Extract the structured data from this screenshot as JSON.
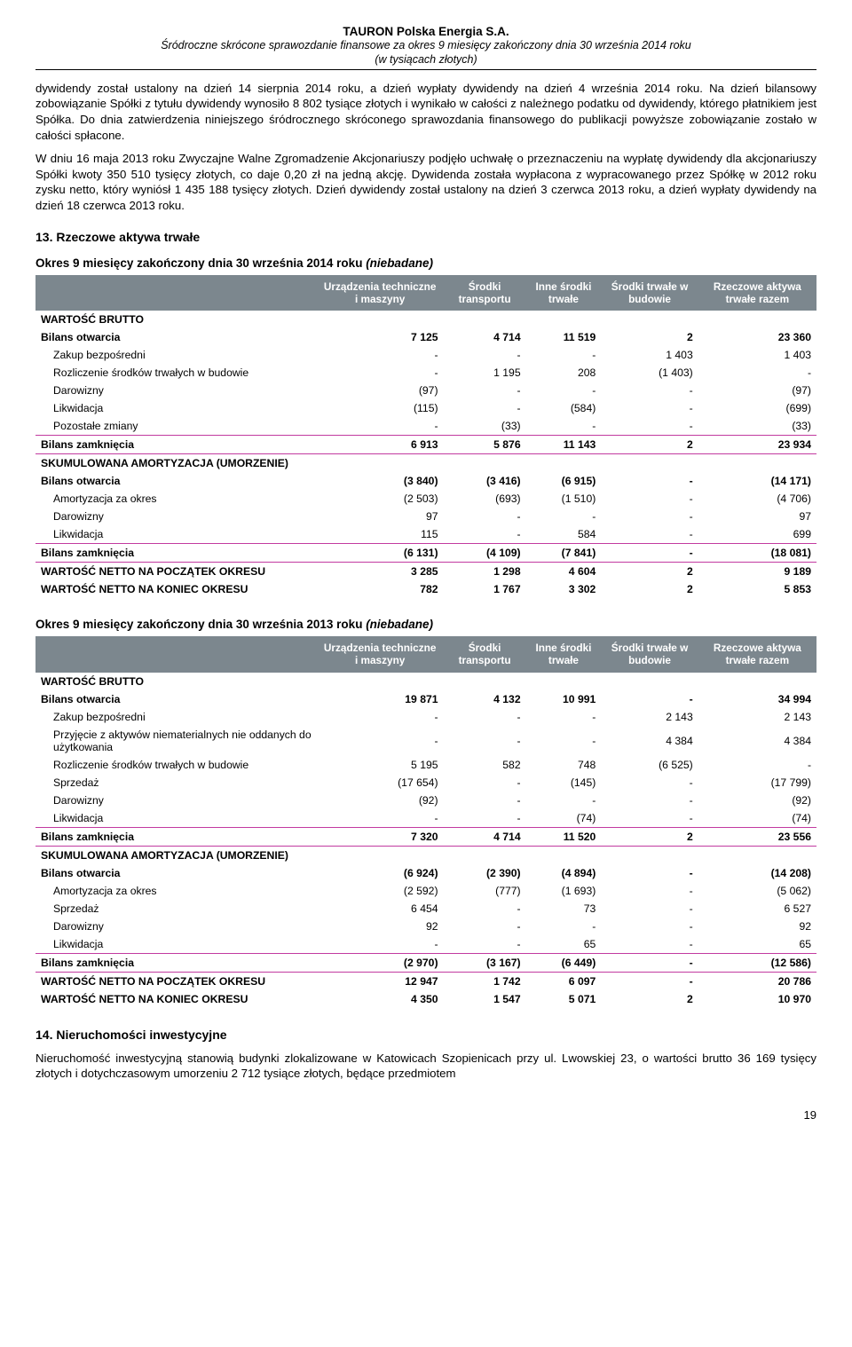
{
  "header": {
    "company": "TAURON Polska Energia S.A.",
    "line1": "Śródroczne skrócone sprawozdanie finansowe za okres 9 miesięcy zakończony dnia 30 września 2014 roku",
    "line2": "(w tysiącach złotych)"
  },
  "para1": "dywidendy został ustalony na dzień 14 sierpnia 2014 roku, a dzień wypłaty dywidendy na dzień 4 września 2014 roku. Na dzień bilansowy zobowiązanie Spółki z tytułu dywidendy wynosiło 8 802 tysiące złotych i wynikało w całości z należnego podatku od dywidendy, którego płatnikiem jest Spółka. Do dnia zatwierdzenia niniejszego śródrocznego skróconego sprawozdania finansowego do publikacji powyższe zobowiązanie zostało w całości spłacone.",
  "para2": "W dniu 16 maja 2013 roku Zwyczajne Walne Zgromadzenie Akcjonariuszy podjęło uchwałę o przeznaczeniu na wypłatę dywidendy dla akcjonariuszy Spółki kwoty 350 510 tysięcy złotych, co daje 0,20 zł na jedną akcję. Dywidenda została wypłacona z wypracowanego przez Spółkę w 2012 roku zysku netto, który wyniósł 1 435 188 tysięcy złotych. Dzień dywidendy został ustalony na dzień 3 czerwca 2013 roku, a dzień wypłaty dywidendy na dzień 18 czerwca 2013 roku.",
  "section13": "13.    Rzeczowe aktywa trwałe",
  "sub2014_a": "Okres 9 miesięcy zakończony dnia 30 września 2014 roku ",
  "sub2014_b": "(niebadane)",
  "columns": [
    "",
    "Urządzenia techniczne i maszyny",
    "Środki transportu",
    "Inne środki trwałe",
    "Środki trwałe w budowie",
    "Rzeczowe aktywa trwałe razem"
  ],
  "table2014": [
    {
      "label": "WARTOŚĆ BRUTTO",
      "v": [
        "",
        "",
        "",
        "",
        ""
      ],
      "bold": true
    },
    {
      "label": "Bilans otwarcia",
      "v": [
        "7 125",
        "4 714",
        "11 519",
        "2",
        "23 360"
      ],
      "bold": true
    },
    {
      "label": "Zakup bezpośredni",
      "v": [
        "-",
        "-",
        "-",
        "1 403",
        "1 403"
      ],
      "indent": true
    },
    {
      "label": "Rozliczenie środków trwałych w budowie",
      "v": [
        "-",
        "1 195",
        "208",
        "(1 403)",
        "-"
      ],
      "indent": true
    },
    {
      "label": "Darowizny",
      "v": [
        "(97)",
        "-",
        "-",
        "-",
        "(97)"
      ],
      "indent": true
    },
    {
      "label": "Likwidacja",
      "v": [
        "(115)",
        "-",
        "(584)",
        "-",
        "(699)"
      ],
      "indent": true
    },
    {
      "label": "Pozostałe zmiany",
      "v": [
        "-",
        "(33)",
        "-",
        "-",
        "(33)"
      ],
      "indent": true,
      "sep": true
    },
    {
      "label": "Bilans zamknięcia",
      "v": [
        "6 913",
        "5 876",
        "11 143",
        "2",
        "23 934"
      ],
      "bold": true,
      "sep": true
    },
    {
      "label": "SKUMULOWANA AMORTYZACJA (UMORZENIE)",
      "v": [
        "",
        "",
        "",
        "",
        ""
      ],
      "bold": true
    },
    {
      "label": "Bilans otwarcia",
      "v": [
        "(3 840)",
        "(3 416)",
        "(6 915)",
        "-",
        "(14 171)"
      ],
      "bold": true
    },
    {
      "label": "Amortyzacja za okres",
      "v": [
        "(2 503)",
        "(693)",
        "(1 510)",
        "-",
        "(4 706)"
      ],
      "indent": true
    },
    {
      "label": "Darowizny",
      "v": [
        "97",
        "-",
        "-",
        "-",
        "97"
      ],
      "indent": true
    },
    {
      "label": "Likwidacja",
      "v": [
        "115",
        "-",
        "584",
        "-",
        "699"
      ],
      "indent": true,
      "sep": true
    },
    {
      "label": "Bilans zamknięcia",
      "v": [
        "(6 131)",
        "(4 109)",
        "(7 841)",
        "-",
        "(18 081)"
      ],
      "bold": true,
      "sep": true
    },
    {
      "label": "WARTOŚĆ NETTO NA POCZĄTEK OKRESU",
      "v": [
        "3 285",
        "1 298",
        "4 604",
        "2",
        "9 189"
      ],
      "bold": true
    },
    {
      "label": "WARTOŚĆ NETTO NA KONIEC OKRESU",
      "v": [
        "782",
        "1 767",
        "3 302",
        "2",
        "5 853"
      ],
      "bold": true
    }
  ],
  "sub2013_a": "Okres 9 miesięcy zakończony dnia 30 września 2013 roku ",
  "sub2013_b": "(niebadane)",
  "table2013": [
    {
      "label": "WARTOŚĆ BRUTTO",
      "v": [
        "",
        "",
        "",
        "",
        ""
      ],
      "bold": true
    },
    {
      "label": "Bilans otwarcia",
      "v": [
        "19 871",
        "4 132",
        "10 991",
        "-",
        "34 994"
      ],
      "bold": true
    },
    {
      "label": "Zakup bezpośredni",
      "v": [
        "-",
        "-",
        "-",
        "2 143",
        "2 143"
      ],
      "indent": true
    },
    {
      "label": "Przyjęcie z aktywów niematerialnych nie oddanych do użytkowania",
      "v": [
        "-",
        "-",
        "-",
        "4 384",
        "4 384"
      ],
      "indent": true
    },
    {
      "label": "Rozliczenie środków trwałych w budowie",
      "v": [
        "5 195",
        "582",
        "748",
        "(6 525)",
        "-"
      ],
      "indent": true
    },
    {
      "label": "Sprzedaż",
      "v": [
        "(17 654)",
        "-",
        "(145)",
        "-",
        "(17 799)"
      ],
      "indent": true
    },
    {
      "label": "Darowizny",
      "v": [
        "(92)",
        "-",
        "-",
        "-",
        "(92)"
      ],
      "indent": true
    },
    {
      "label": "Likwidacja",
      "v": [
        "-",
        "-",
        "(74)",
        "-",
        "(74)"
      ],
      "indent": true,
      "sep": true
    },
    {
      "label": "Bilans zamknięcia",
      "v": [
        "7 320",
        "4 714",
        "11 520",
        "2",
        "23 556"
      ],
      "bold": true,
      "sep": true
    },
    {
      "label": "SKUMULOWANA AMORTYZACJA (UMORZENIE)",
      "v": [
        "",
        "",
        "",
        "",
        ""
      ],
      "bold": true
    },
    {
      "label": "Bilans otwarcia",
      "v": [
        "(6 924)",
        "(2 390)",
        "(4 894)",
        "-",
        "(14 208)"
      ],
      "bold": true
    },
    {
      "label": "Amortyzacja za okres",
      "v": [
        "(2 592)",
        "(777)",
        "(1 693)",
        "-",
        "(5 062)"
      ],
      "indent": true
    },
    {
      "label": "Sprzedaż",
      "v": [
        "6 454",
        "-",
        "73",
        "-",
        "6 527"
      ],
      "indent": true
    },
    {
      "label": "Darowizny",
      "v": [
        "92",
        "-",
        "-",
        "-",
        "92"
      ],
      "indent": true
    },
    {
      "label": "Likwidacja",
      "v": [
        "-",
        "-",
        "65",
        "-",
        "65"
      ],
      "indent": true,
      "sep": true
    },
    {
      "label": "Bilans zamknięcia",
      "v": [
        "(2 970)",
        "(3 167)",
        "(6 449)",
        "-",
        "(12 586)"
      ],
      "bold": true,
      "sep": true
    },
    {
      "label": "WARTOŚĆ NETTO NA POCZĄTEK OKRESU",
      "v": [
        "12 947",
        "1 742",
        "6 097",
        "-",
        "20 786"
      ],
      "bold": true
    },
    {
      "label": "WARTOŚĆ NETTO NA KONIEC OKRESU",
      "v": [
        "4 350",
        "1 547",
        "5 071",
        "2",
        "10 970"
      ],
      "bold": true
    }
  ],
  "section14": "14.    Nieruchomości inwestycyjne",
  "para14": "Nieruchomość inwestycyjną stanowią budynki zlokalizowane w Katowicach Szopienicach przy ul. Lwowskiej 23, o wartości brutto 36 169 tysięcy złotych i dotychczasowym umorzeniu 2 712 tysiące złotych, będące przedmiotem",
  "pagenum": "19"
}
